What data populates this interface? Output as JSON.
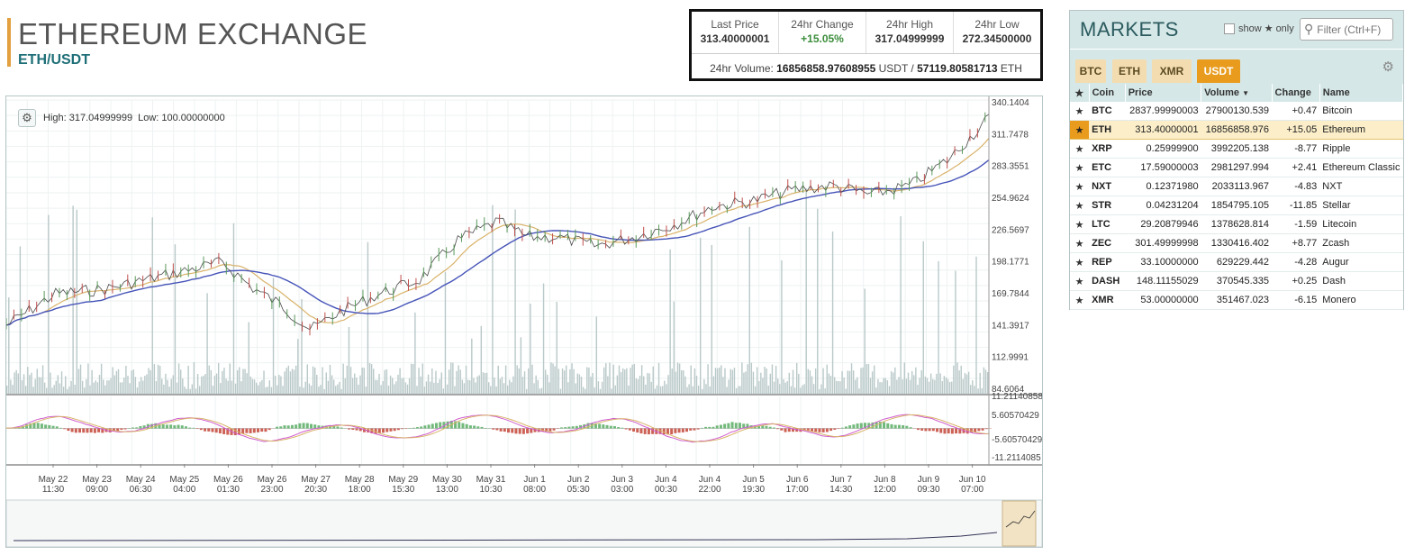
{
  "header": {
    "title": "ETHEREUM EXCHANGE",
    "pair": "ETH/USDT"
  },
  "stats": {
    "last_price_label": "Last Price",
    "last_price": "313.40000001",
    "change_label": "24hr Change",
    "change": "+15.05%",
    "high_label": "24hr High",
    "high": "317.04999999",
    "low_label": "24hr Low",
    "low": "272.34500000",
    "volume_label": "24hr Volume:",
    "volume_usdt": "16856858.97608955",
    "volume_usdt_unit": "USDT /",
    "volume_eth": "57119.80581713",
    "volume_eth_unit": "ETH"
  },
  "chart": {
    "info_high": "High: 317.04999999",
    "info_low": "Low: 100.00000000",
    "price_ticks": [
      "340.1404",
      "311.7478",
      "283.3551",
      "254.9624",
      "226.5697",
      "198.1771",
      "169.7844",
      "141.3917",
      "112.9991",
      "84.6064"
    ],
    "macd_ticks": [
      "11.21140858",
      "5.60570429",
      "-5.60570429",
      "-11.2114085"
    ],
    "date_ticks": [
      [
        "May 22",
        "11:30"
      ],
      [
        "May 23",
        "09:00"
      ],
      [
        "May 24",
        "06:30"
      ],
      [
        "May 25",
        "04:00"
      ],
      [
        "May 26",
        "01:30"
      ],
      [
        "May 26",
        "23:00"
      ],
      [
        "May 27",
        "20:30"
      ],
      [
        "May 28",
        "18:00"
      ],
      [
        "May 29",
        "15:30"
      ],
      [
        "May 30",
        "13:00"
      ],
      [
        "May 31",
        "10:30"
      ],
      [
        "Jun 1",
        "08:00"
      ],
      [
        "Jun 2",
        "05:30"
      ],
      [
        "Jun 3",
        "03:00"
      ],
      [
        "Jun 4",
        "00:30"
      ],
      [
        "Jun 4",
        "22:00"
      ],
      [
        "Jun 5",
        "19:30"
      ],
      [
        "Jun 6",
        "17:00"
      ],
      [
        "Jun 7",
        "14:30"
      ],
      [
        "Jun 8",
        "12:00"
      ],
      [
        "Jun 9",
        "09:30"
      ],
      [
        "Jun 10",
        "07:00"
      ]
    ],
    "colors": {
      "price": "#4a4a4a",
      "ma_fast": "#d9b36a",
      "ma_slow": "#4654b8",
      "volume": "#b9c8c8",
      "macd": "#d05fd0",
      "signal": "#d9b36a",
      "hist_pos": "#4fa85a",
      "hist_neg": "#c0392b"
    }
  },
  "markets": {
    "title": "MARKETS",
    "show_label": "show",
    "only_label": "only",
    "filter_placeholder": "Filter (Ctrl+F)",
    "tabs": [
      "BTC",
      "ETH",
      "XMR",
      "USDT"
    ],
    "active_tab": "USDT",
    "columns": [
      "Coin",
      "Price",
      "Volume",
      "Change",
      "Name"
    ],
    "rows": [
      {
        "coin": "BTC",
        "price": "2837.99990003",
        "volume": "27900130.539",
        "change": "+0.47",
        "name": "Bitcoin"
      },
      {
        "coin": "ETH",
        "price": "313.40000001",
        "volume": "16856858.976",
        "change": "+15.05",
        "name": "Ethereum"
      },
      {
        "coin": "XRP",
        "price": "0.25999900",
        "volume": "3992205.138",
        "change": "-8.77",
        "name": "Ripple"
      },
      {
        "coin": "ETC",
        "price": "17.59000003",
        "volume": "2981297.994",
        "change": "+2.41",
        "name": "Ethereum Classic"
      },
      {
        "coin": "NXT",
        "price": "0.12371980",
        "volume": "2033113.967",
        "change": "-4.83",
        "name": "NXT"
      },
      {
        "coin": "STR",
        "price": "0.04231204",
        "volume": "1854795.105",
        "change": "-11.85",
        "name": "Stellar"
      },
      {
        "coin": "LTC",
        "price": "29.20879946",
        "volume": "1378628.814",
        "change": "-1.59",
        "name": "Litecoin"
      },
      {
        "coin": "ZEC",
        "price": "301.49999998",
        "volume": "1330416.402",
        "change": "+8.77",
        "name": "Zcash"
      },
      {
        "coin": "REP",
        "price": "33.10000000",
        "volume": "629229.442",
        "change": "-4.28",
        "name": "Augur"
      },
      {
        "coin": "DASH",
        "price": "148.11155029",
        "volume": "370545.335",
        "change": "+0.25",
        "name": "Dash"
      },
      {
        "coin": "XMR",
        "price": "53.00000000",
        "volume": "351467.023",
        "change": "-6.15",
        "name": "Monero"
      }
    ]
  }
}
